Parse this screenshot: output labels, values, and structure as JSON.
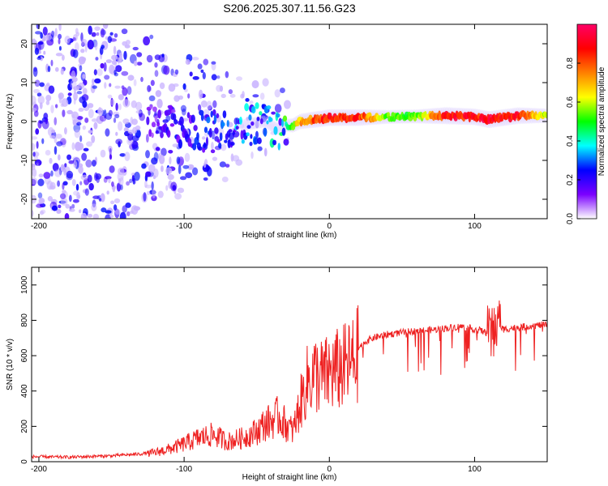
{
  "title": "S206.2025.307.11.56.G23",
  "chart_data": [
    {
      "type": "heatmap",
      "title": "S206.2025.307.11.56.G23",
      "xlabel": "Height of straight line (km)",
      "ylabel": "Frequency (Hz)",
      "xlim": [
        -205,
        150
      ],
      "ylim": [
        -25,
        25
      ],
      "xticks": [
        -200,
        -100,
        0,
        100
      ],
      "xtick_labels": [
        "-200",
        "-100",
        "0",
        "100"
      ],
      "yticks": [
        -20,
        -10,
        0,
        10,
        20
      ],
      "ytick_labels": [
        "-20",
        "-10",
        "0",
        "10",
        "20"
      ],
      "ridge": {
        "x": [
          -120,
          -100,
          -80,
          -60,
          -45,
          -35,
          -30,
          -25,
          -20,
          -10,
          0,
          20,
          40,
          60,
          80,
          100,
          110,
          130,
          150
        ],
        "freq": [
          0,
          -2,
          -3,
          -1,
          0,
          -2,
          -1,
          -1,
          0,
          0.5,
          1,
          1,
          1.2,
          1.3,
          1.5,
          1.2,
          0.5,
          1.5,
          1.5
        ],
        "amplitude": [
          0.15,
          0.2,
          0.25,
          0.3,
          0.35,
          0.3,
          0.4,
          0.6,
          0.75,
          0.85,
          0.9,
          0.9,
          0.55,
          0.55,
          0.95,
          0.9,
          0.95,
          0.9,
          0.6
        ]
      },
      "colorbar": {
        "label": "Normalized spectral amplitude",
        "range": [
          0,
          1
        ],
        "ticks": [
          0.0,
          0.2,
          0.4,
          0.6,
          0.8
        ],
        "tick_labels": [
          "0.0",
          "0.2",
          "0.4",
          "0.6",
          "0.8"
        ],
        "colormap": [
          "#ffffff",
          "#7b00ff",
          "#0000ff",
          "#00ffff",
          "#00ff00",
          "#ffff00",
          "#ff8000",
          "#ff0000",
          "#ff0066"
        ]
      }
    },
    {
      "type": "line",
      "xlabel": "Height of straight line (km)",
      "ylabel": "SNR (10 * v/v)",
      "xlim": [
        -205,
        150
      ],
      "ylim": [
        0,
        1100
      ],
      "xticks": [
        -200,
        -100,
        0,
        100
      ],
      "xtick_labels": [
        "-200",
        "-100",
        "0",
        "100"
      ],
      "yticks": [
        0,
        200,
        400,
        600,
        800,
        1000
      ],
      "ytick_labels": [
        "0",
        "200",
        "400",
        "600",
        "800",
        "1000"
      ],
      "color": "#ee2222",
      "series": [
        {
          "name": "SNR",
          "x": [
            -205,
            -180,
            -150,
            -130,
            -120,
            -110,
            -100,
            -90,
            -80,
            -70,
            -60,
            -50,
            -45,
            -40,
            -35,
            -30,
            -25,
            -20,
            -15,
            -10,
            -5,
            0,
            5,
            10,
            15,
            20,
            25,
            30,
            40,
            50,
            60,
            70,
            80,
            90,
            100,
            105,
            110,
            112,
            115,
            120,
            130,
            140,
            150
          ],
          "y": [
            25,
            22,
            30,
            40,
            55,
            75,
            105,
            140,
            160,
            120,
            140,
            180,
            220,
            240,
            270,
            220,
            180,
            340,
            480,
            520,
            500,
            520,
            540,
            560,
            580,
            640,
            680,
            700,
            720,
            730,
            740,
            745,
            755,
            765,
            750,
            740,
            720,
            720,
            770,
            750,
            760,
            770,
            775
          ]
        }
      ]
    }
  ]
}
